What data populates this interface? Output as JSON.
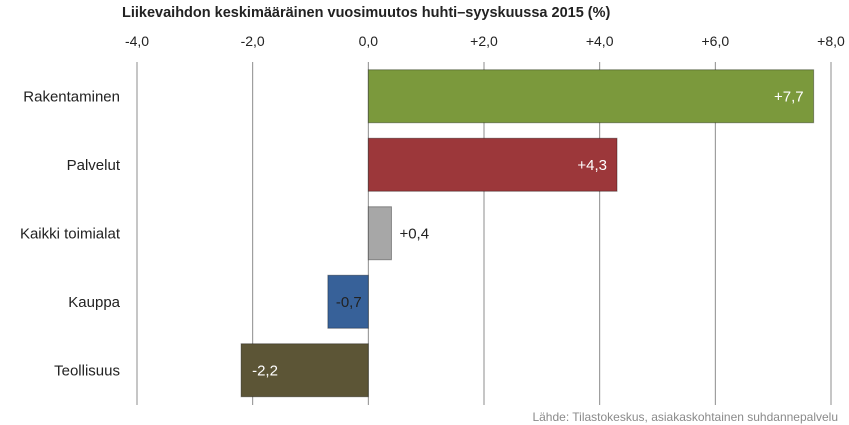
{
  "chart_data": {
    "type": "bar",
    "orientation": "horizontal",
    "title": "Liikevaihdon keskimääräinen vuosimuutos huhti–syyskuussa 2015 (%)",
    "categories": [
      "Rakentaminen",
      "Palvelut",
      "Kaikki toimialat",
      "Kauppa",
      "Teollisuus"
    ],
    "values": [
      7.7,
      4.3,
      0.4,
      -0.7,
      -2.2
    ],
    "value_labels": [
      "+7,7",
      "+4,3",
      "+0,4",
      "-0,7",
      "-2,2"
    ],
    "bar_colors": [
      "#7b993c",
      "#9c373a",
      "#a7a7a7",
      "#376199",
      "#5c5536"
    ],
    "xlim": [
      -4,
      8
    ],
    "x_ticks": [
      -4,
      -2,
      0,
      2,
      4,
      6,
      8
    ],
    "x_tick_labels": [
      "-4,0",
      "-2,0",
      "0,0",
      "+2,0",
      "+4,0",
      "+6,0",
      "+8,0"
    ],
    "tick_position": "top",
    "grid": "vertical",
    "source": "Lähde: Tilastokeskus, asiakaskohtainen suhdannepalvelu"
  }
}
